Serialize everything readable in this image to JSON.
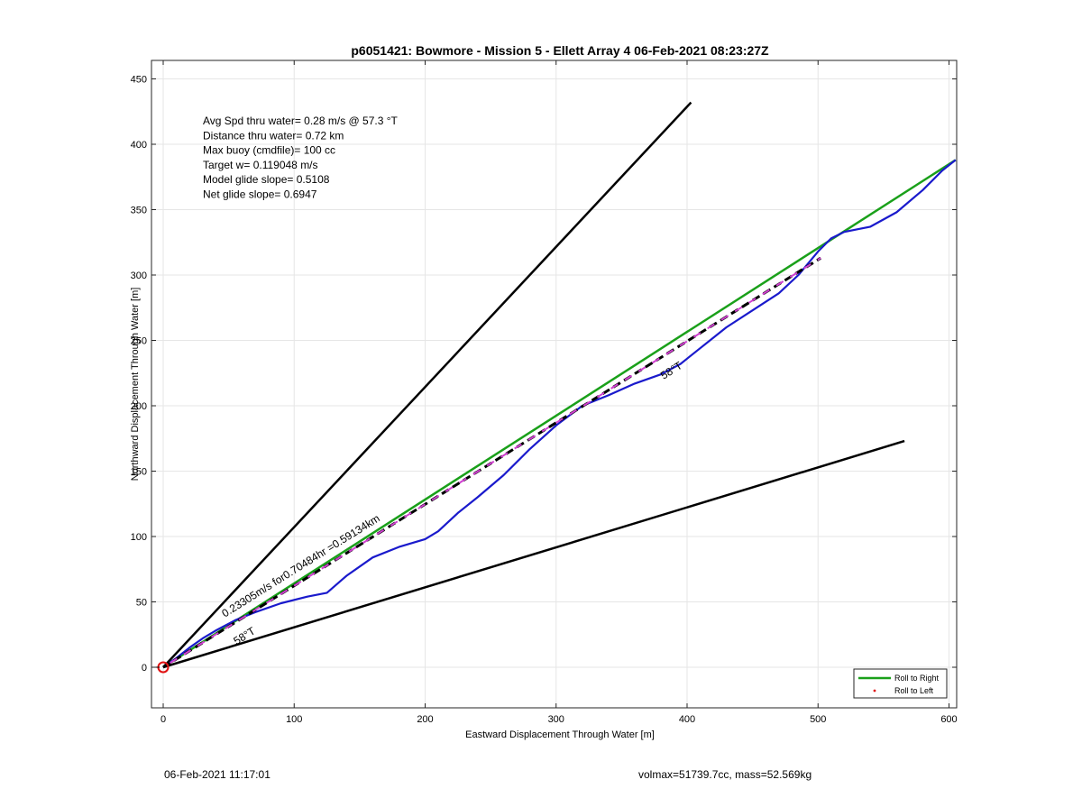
{
  "chart_data": {
    "type": "line",
    "title": "p6051421: Bowmore - Mission 5 - Ellett Array 4 06-Feb-2021 08:23:27Z",
    "xlabel": "Eastward Displacement Through Water [m]",
    "ylabel": "Northward Displacement Through Water [m]",
    "xlim": [
      0,
      605
    ],
    "ylim": [
      -30,
      465
    ],
    "xticks": [
      0,
      100,
      200,
      300,
      400,
      500,
      600
    ],
    "yticks": [
      0,
      50,
      100,
      150,
      200,
      250,
      300,
      350,
      400,
      450
    ],
    "grid": true,
    "legend_position": "bottom-right",
    "legend": [
      {
        "label": "Roll to Right",
        "color": "#1aa01a",
        "marker": "line"
      },
      {
        "label": "Roll to Left",
        "color": "#e01010",
        "marker": "dot"
      }
    ],
    "stats": [
      "Avg Spd thru water=  0.28 m/s @  57.3 °T",
      "Distance thru water=  0.72 km",
      "Max buoy (cmdfile)= 100 cc",
      "Target w= 0.119048 m/s",
      "Model glide slope= 0.5108",
      "Net glide slope= 0.6947"
    ],
    "series": [
      {
        "role": "cone-left",
        "color": "#000000",
        "x": [
          0,
          403
        ],
        "y": [
          0,
          432
        ]
      },
      {
        "role": "cone-right",
        "color": "#000000",
        "x": [
          0,
          566
        ],
        "y": [
          0,
          173
        ]
      },
      {
        "role": "track",
        "color": "#1aa01a",
        "x": [
          0,
          605
        ],
        "y": [
          0,
          388
        ]
      },
      {
        "role": "dashed",
        "color": "#000000",
        "x": [
          0,
          502
        ],
        "y": [
          0,
          313
        ]
      },
      {
        "role": "dashed-overlay",
        "color": "#d040d0",
        "x": [
          0,
          502
        ],
        "y": [
          0,
          313
        ]
      },
      {
        "role": "path",
        "color": "#1a1acc",
        "x": [
          0,
          10,
          20,
          30,
          40,
          55,
          70,
          90,
          110,
          125,
          140,
          160,
          180,
          200,
          210,
          225,
          240,
          260,
          280,
          300,
          320,
          340,
          360,
          380,
          395,
          410,
          430,
          450,
          470,
          485,
          500,
          510,
          520,
          540,
          560,
          580,
          595,
          605
        ],
        "y": [
          0,
          7,
          15,
          22,
          28,
          36,
          42,
          49,
          54,
          57,
          70,
          84,
          92,
          98,
          104,
          118,
          130,
          147,
          167,
          185,
          200,
          208,
          217,
          224,
          232,
          244,
          260,
          273,
          286,
          300,
          318,
          328,
          333,
          337,
          348,
          365,
          380,
          388
        ]
      }
    ],
    "annotations": [
      {
        "text": "0.23305m/s for0.70484hr =0.59134km",
        "x": 47,
        "y": 38,
        "angle": 32
      },
      {
        "text": "58°T",
        "x": 56,
        "y": 17,
        "angle": 32
      },
      {
        "text": "58°T",
        "x": 382,
        "y": 220,
        "angle": 32
      }
    ],
    "origin_marker": {
      "x": 0,
      "y": 0,
      "color": "#e01010"
    }
  },
  "footer": {
    "left": "06-Feb-2021 11:17:01",
    "right": "volmax=51739.7cc, mass=52.569kg"
  }
}
